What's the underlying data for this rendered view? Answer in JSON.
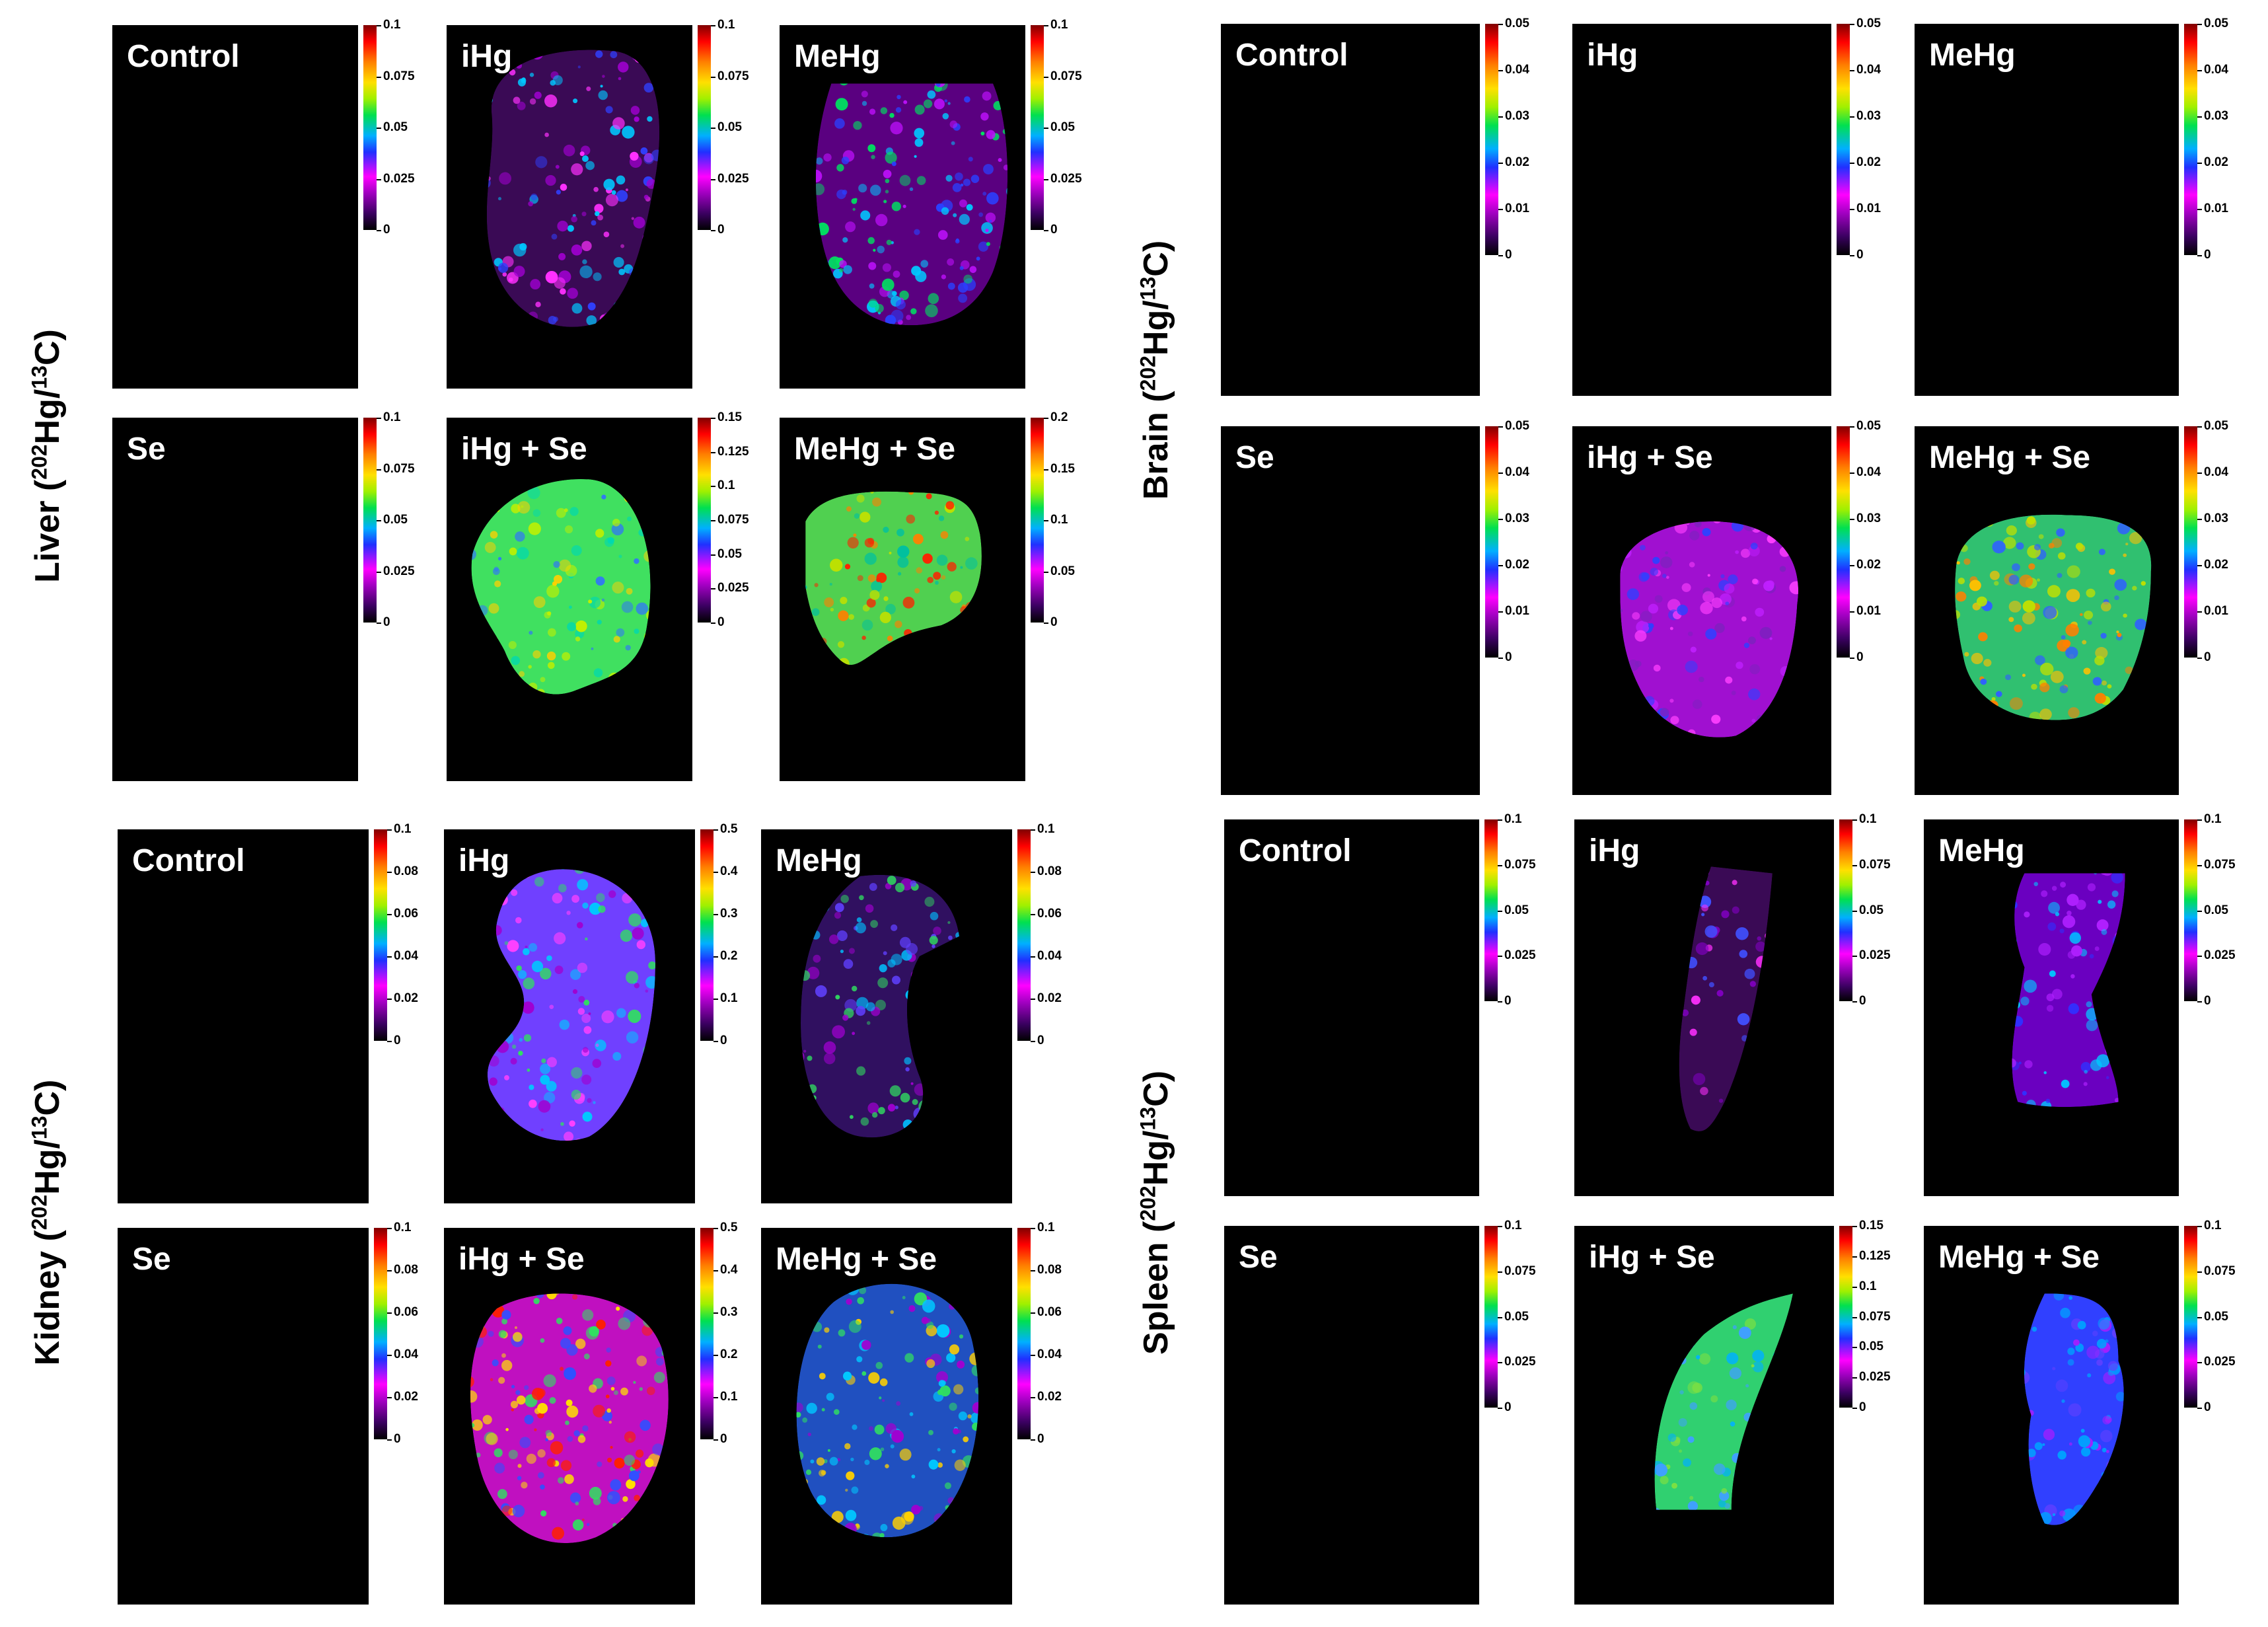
{
  "unit": "(202Hg/13C)",
  "quadrants": [
    {
      "organ": "Liver",
      "panels": [
        {
          "title": "Control",
          "ticks": [
            "0.1",
            "0.075",
            "0.05",
            "0.025",
            "0"
          ]
        },
        {
          "title": "iHg",
          "ticks": [
            "0.1",
            "0.075",
            "0.05",
            "0.025",
            "0"
          ]
        },
        {
          "title": "MeHg",
          "ticks": [
            "0.1",
            "0.075",
            "0.05",
            "0.025",
            "0"
          ]
        },
        {
          "title": "Se",
          "ticks": [
            "0.1",
            "0.075",
            "0.05",
            "0.025",
            "0"
          ]
        },
        {
          "title": "iHg + Se",
          "ticks": [
            "0.15",
            "0.125",
            "0.1",
            "0.075",
            "0.05",
            "0.025",
            "0"
          ]
        },
        {
          "title": "MeHg + Se",
          "ticks": [
            "0.2",
            "0.15",
            "0.1",
            "0.05",
            "0"
          ]
        }
      ]
    },
    {
      "organ": "Brain",
      "panels": [
        {
          "title": "Control",
          "ticks": [
            "0.05",
            "0.04",
            "0.03",
            "0.02",
            "0.01",
            "0"
          ]
        },
        {
          "title": "iHg",
          "ticks": [
            "0.05",
            "0.04",
            "0.03",
            "0.02",
            "0.01",
            "0"
          ]
        },
        {
          "title": "MeHg",
          "ticks": [
            "0.05",
            "0.04",
            "0.03",
            "0.02",
            "0.01",
            "0"
          ]
        },
        {
          "title": "Se",
          "ticks": [
            "0.05",
            "0.04",
            "0.03",
            "0.02",
            "0.01",
            "0"
          ]
        },
        {
          "title": "iHg + Se",
          "ticks": [
            "0.05",
            "0.04",
            "0.03",
            "0.02",
            "0.01",
            "0"
          ]
        },
        {
          "title": "MeHg + Se",
          "ticks": [
            "0.05",
            "0.04",
            "0.03",
            "0.02",
            "0.01",
            "0"
          ]
        }
      ]
    },
    {
      "organ": "Kidney",
      "panels": [
        {
          "title": "Control",
          "ticks": [
            "0.1",
            "0.08",
            "0.06",
            "0.04",
            "0.02",
            "0"
          ]
        },
        {
          "title": "iHg",
          "ticks": [
            "0.5",
            "0.4",
            "0.3",
            "0.2",
            "0.1",
            "0"
          ]
        },
        {
          "title": "MeHg",
          "ticks": [
            "0.1",
            "0.08",
            "0.06",
            "0.04",
            "0.02",
            "0"
          ]
        },
        {
          "title": "Se",
          "ticks": [
            "0.1",
            "0.08",
            "0.06",
            "0.04",
            "0.02",
            "0"
          ]
        },
        {
          "title": "iHg + Se",
          "ticks": [
            "0.5",
            "0.4",
            "0.3",
            "0.2",
            "0.1",
            "0"
          ]
        },
        {
          "title": "MeHg + Se",
          "ticks": [
            "0.1",
            "0.08",
            "0.06",
            "0.04",
            "0.02",
            "0"
          ]
        }
      ]
    },
    {
      "organ": "Spleen",
      "panels": [
        {
          "title": "Control",
          "ticks": [
            "0.1",
            "0.075",
            "0.05",
            "0.025",
            "0"
          ]
        },
        {
          "title": "iHg",
          "ticks": [
            "0.1",
            "0.075",
            "0.05",
            "0.025",
            "0"
          ]
        },
        {
          "title": "MeHg",
          "ticks": [
            "0.1",
            "0.075",
            "0.05",
            "0.025",
            "0"
          ]
        },
        {
          "title": "Se",
          "ticks": [
            "0.1",
            "0.075",
            "0.05",
            "0.025",
            "0"
          ]
        },
        {
          "title": "iHg + Se",
          "ticks": [
            "0.15",
            "0.125",
            "0.1",
            "0.075",
            "0.05",
            "0.025",
            "0"
          ]
        },
        {
          "title": "MeHg + Se",
          "ticks": [
            "0.1",
            "0.075",
            "0.05",
            "0.025",
            "0"
          ]
        }
      ]
    }
  ]
}
